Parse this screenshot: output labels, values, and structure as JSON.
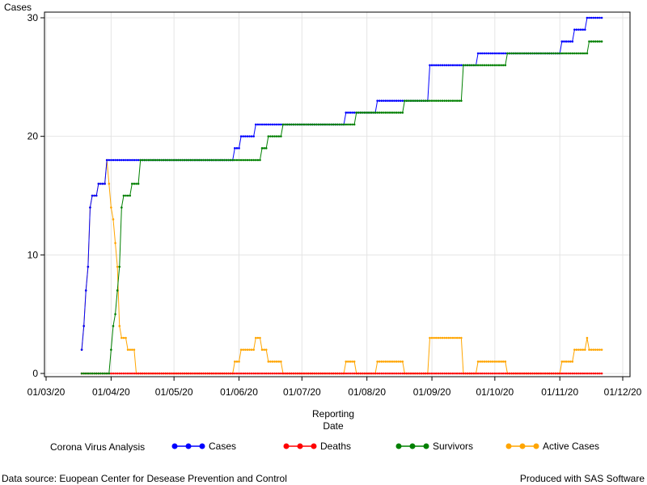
{
  "chart_data": {
    "type": "line",
    "ylabel": "Cases",
    "xlabel_lines": [
      "Reporting",
      "Date"
    ],
    "ylim": [
      0,
      30
    ],
    "yticks": [
      0,
      10,
      20,
      30
    ],
    "x_start": "2020-03-01",
    "x_end": "2020-12-01",
    "xtick_labels": [
      "01/03/20",
      "01/04/20",
      "01/05/20",
      "01/06/20",
      "01/07/20",
      "01/08/20",
      "01/09/20",
      "01/10/20",
      "01/11/20",
      "01/12/20"
    ],
    "grid": true,
    "legend_title": "Corona Virus Analysis",
    "legend_position": "bottom",
    "series": [
      {
        "name": "Cases",
        "color": "#0000ff",
        "points": [
          [
            "2020-03-18",
            2
          ],
          [
            "2020-03-19",
            4
          ],
          [
            "2020-03-20",
            7
          ],
          [
            "2020-03-21",
            9
          ],
          [
            "2020-03-22",
            14
          ],
          [
            "2020-03-23",
            15
          ],
          [
            "2020-03-26",
            16
          ],
          [
            "2020-03-30",
            18
          ],
          [
            "2020-05-30",
            19
          ],
          [
            "2020-06-02",
            20
          ],
          [
            "2020-06-09",
            21
          ],
          [
            "2020-07-22",
            22
          ],
          [
            "2020-08-06",
            23
          ],
          [
            "2020-08-31",
            26
          ],
          [
            "2020-09-23",
            27
          ],
          [
            "2020-10-06",
            27
          ],
          [
            "2020-11-02",
            28
          ],
          [
            "2020-11-08",
            29
          ],
          [
            "2020-11-14",
            30
          ],
          [
            "2020-11-21",
            30
          ]
        ]
      },
      {
        "name": "Deaths",
        "color": "#ff0000",
        "points": [
          [
            "2020-03-18",
            0
          ],
          [
            "2020-11-21",
            0
          ]
        ]
      },
      {
        "name": "Survivors",
        "color": "#008000",
        "points": [
          [
            "2020-03-18",
            0
          ],
          [
            "2020-03-31",
            0
          ],
          [
            "2020-04-01",
            2
          ],
          [
            "2020-04-02",
            4
          ],
          [
            "2020-04-03",
            5
          ],
          [
            "2020-04-04",
            7
          ],
          [
            "2020-04-05",
            9
          ],
          [
            "2020-04-06",
            14
          ],
          [
            "2020-04-07",
            15
          ],
          [
            "2020-04-11",
            16
          ],
          [
            "2020-04-15",
            18
          ],
          [
            "2020-06-10",
            18
          ],
          [
            "2020-06-12",
            19
          ],
          [
            "2020-06-15",
            20
          ],
          [
            "2020-06-22",
            21
          ],
          [
            "2020-07-27",
            22
          ],
          [
            "2020-08-19",
            23
          ],
          [
            "2020-09-16",
            26
          ],
          [
            "2020-10-07",
            27
          ],
          [
            "2020-11-15",
            28
          ],
          [
            "2020-11-21",
            28
          ]
        ]
      },
      {
        "name": "Active Cases",
        "color": "#ffa500",
        "points": [
          [
            "2020-03-18",
            2
          ],
          [
            "2020-03-19",
            4
          ],
          [
            "2020-03-20",
            7
          ],
          [
            "2020-03-21",
            9
          ],
          [
            "2020-03-22",
            14
          ],
          [
            "2020-03-23",
            15
          ],
          [
            "2020-03-26",
            16
          ],
          [
            "2020-03-30",
            18
          ],
          [
            "2020-03-31",
            16
          ],
          [
            "2020-04-01",
            14
          ],
          [
            "2020-04-02",
            13
          ],
          [
            "2020-04-03",
            11
          ],
          [
            "2020-04-04",
            9
          ],
          [
            "2020-04-05",
            4
          ],
          [
            "2020-04-06",
            3
          ],
          [
            "2020-04-09",
            2
          ],
          [
            "2020-04-13",
            0
          ],
          [
            "2020-05-30",
            1
          ],
          [
            "2020-06-02",
            2
          ],
          [
            "2020-06-09",
            3
          ],
          [
            "2020-06-12",
            2
          ],
          [
            "2020-06-15",
            1
          ],
          [
            "2020-06-22",
            0
          ],
          [
            "2020-07-22",
            1
          ],
          [
            "2020-07-27",
            0
          ],
          [
            "2020-08-06",
            1
          ],
          [
            "2020-08-19",
            0
          ],
          [
            "2020-08-31",
            3
          ],
          [
            "2020-09-16",
            0
          ],
          [
            "2020-09-23",
            1
          ],
          [
            "2020-10-07",
            0
          ],
          [
            "2020-11-02",
            1
          ],
          [
            "2020-11-08",
            2
          ],
          [
            "2020-11-14",
            3
          ],
          [
            "2020-11-15",
            2
          ],
          [
            "2020-11-21",
            2
          ]
        ]
      }
    ]
  },
  "footer": {
    "source": "Data source: Euopean Center for Desease Prevention and Control",
    "produced": "Produced with SAS Software"
  }
}
